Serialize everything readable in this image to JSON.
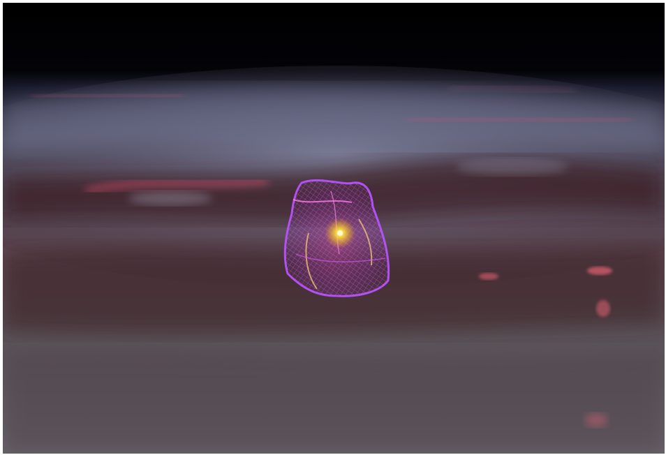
{
  "scene": {
    "description_colors": {
      "space": "#000000",
      "galaxy_dust_dark": "#2a1414",
      "galaxy_haze_light": "#8d8aa0",
      "nebula_pink": "#ff5577",
      "mesh_purple": "#c040ff",
      "mesh_magenta": "#ff3cc8",
      "core_yellow": "#ffe23a"
    },
    "objects": {
      "background": "milky-way-disk",
      "center_object": "wireframe-3d-mesh",
      "center_light": "glowing-point"
    }
  }
}
